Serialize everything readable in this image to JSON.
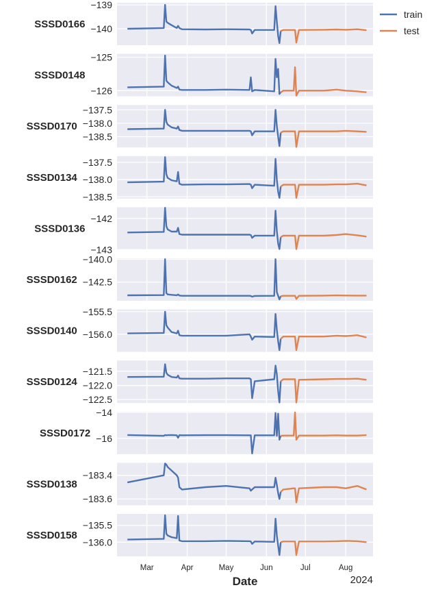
{
  "chart_data": {
    "type": "line",
    "year": "2024",
    "xlabel": "Date",
    "year_label": "2024",
    "xlim": [
      "02-07",
      "08-22"
    ],
    "x_ticks": [
      {
        "date": "03-01",
        "label": "Mar"
      },
      {
        "date": "04-01",
        "label": "Apr"
      },
      {
        "date": "05-01",
        "label": "May"
      },
      {
        "date": "06-01",
        "label": "Jun"
      },
      {
        "date": "07-01",
        "label": "Jul"
      },
      {
        "date": "08-01",
        "label": "Aug"
      }
    ],
    "legend": {
      "placement": "top-right outside",
      "entries": [
        {
          "name": "train",
          "color": "#4C72B0"
        },
        {
          "name": "test",
          "color": "#DD8452"
        }
      ]
    },
    "train_dates": [
      "02-15",
      "03-14",
      "03-15",
      "03-16",
      "03-17",
      "03-20",
      "03-24",
      "03-25",
      "03-26",
      "03-28",
      "04-15",
      "05-01",
      "05-19",
      "05-20",
      "05-21",
      "05-23",
      "06-07",
      "06-08",
      "06-09",
      "06-10",
      "06-11",
      "06-12"
    ],
    "test_dates": [
      "06-12",
      "06-14",
      "06-22",
      "06-23",
      "06-24",
      "06-26",
      "07-15",
      "07-25",
      "08-01",
      "08-10",
      "08-17"
    ],
    "panels": [
      {
        "name": "SSSD0166",
        "ylim": [
          -140.69,
          -138.91
        ],
        "yticks": [
          {
            "v": -139,
            "label": "−139"
          },
          {
            "v": -140,
            "label": "−140"
          }
        ],
        "train": [
          -140.0,
          -139.97,
          -139.0,
          -139.7,
          -139.75,
          -139.85,
          -139.97,
          -139.88,
          -139.97,
          -140.02,
          -140.03,
          -140.02,
          -140.03,
          -140.05,
          -140.2,
          -140.05,
          -140.05,
          -139.05,
          -139.7,
          -140.3,
          -140.6,
          -140.1
        ],
        "test": [
          -140.1,
          -140.05,
          -140.05,
          -140.05,
          -140.58,
          -140.05,
          -140.04,
          -140.03,
          -140.04,
          -140.02,
          -140.06
        ]
      },
      {
        "name": "SSSD0148",
        "ylim": [
          -126.17,
          -124.9
        ],
        "yticks": [
          {
            "v": -125,
            "label": "−125"
          },
          {
            "v": -126,
            "label": "−126"
          }
        ],
        "train": [
          -125.9,
          -125.88,
          -124.95,
          -125.7,
          -125.75,
          -125.85,
          -125.92,
          -125.88,
          -125.97,
          -125.98,
          -125.98,
          -125.97,
          -125.98,
          -125.6,
          -126.02,
          -125.98,
          -126.02,
          -125.05,
          -125.6,
          -125.35,
          -126.1,
          -126.05
        ],
        "test": [
          -126.05,
          -126.0,
          -126.0,
          -125.3,
          -126.15,
          -126.0,
          -126.0,
          -125.97,
          -126.0,
          -126.02,
          -126.05
        ]
      },
      {
        "name": "SSSD0170",
        "ylim": [
          -138.9,
          -137.32
        ],
        "yticks": [
          {
            "v": -137.5,
            "label": "−137.5"
          },
          {
            "v": -138.0,
            "label": "−138.0"
          },
          {
            "v": -138.5,
            "label": "−138.5"
          }
        ],
        "train": [
          -138.22,
          -138.2,
          -137.5,
          -137.95,
          -138.05,
          -138.15,
          -138.2,
          -138.12,
          -138.25,
          -138.28,
          -138.28,
          -138.28,
          -138.28,
          -138.3,
          -138.45,
          -138.3,
          -138.3,
          -137.5,
          -138.1,
          -138.5,
          -138.85,
          -138.35
        ],
        "test": [
          -138.35,
          -138.3,
          -138.3,
          -138.3,
          -138.88,
          -138.3,
          -138.3,
          -138.3,
          -138.28,
          -138.3,
          -138.32
        ]
      },
      {
        "name": "SSSD0134",
        "ylim": [
          -138.55,
          -137.32
        ],
        "yticks": [
          {
            "v": -137.5,
            "label": "−137.5"
          },
          {
            "v": -138.0,
            "label": "−138.0"
          },
          {
            "v": -138.5,
            "label": "−138.5"
          }
        ],
        "train": [
          -138.08,
          -138.06,
          -137.35,
          -137.85,
          -137.95,
          -138.02,
          -138.05,
          -137.78,
          -138.12,
          -138.15,
          -138.14,
          -138.14,
          -138.13,
          -138.15,
          -138.25,
          -138.15,
          -138.18,
          -137.4,
          -138.0,
          -138.35,
          -138.53,
          -138.2
        ],
        "test": [
          -138.2,
          -138.15,
          -138.15,
          -138.15,
          -138.53,
          -138.15,
          -138.15,
          -138.14,
          -138.14,
          -138.12,
          -138.17
        ]
      },
      {
        "name": "SSSD0136",
        "ylim": [
          -143.0,
          -141.64
        ],
        "yticks": [
          {
            "v": -142,
            "label": "−142"
          },
          {
            "v": -143,
            "label": "−143"
          }
        ],
        "train": [
          -142.45,
          -142.43,
          -141.66,
          -142.25,
          -142.35,
          -142.42,
          -142.42,
          -142.3,
          -142.5,
          -142.52,
          -142.52,
          -142.52,
          -142.52,
          -142.53,
          -142.62,
          -142.55,
          -142.55,
          -141.75,
          -142.4,
          -142.8,
          -142.98,
          -142.6
        ],
        "test": [
          -142.6,
          -142.55,
          -142.55,
          -142.55,
          -142.98,
          -142.55,
          -142.55,
          -142.53,
          -142.5,
          -142.54,
          -142.58
        ]
      },
      {
        "name": "SSSD0162",
        "ylim": [
          -144.55,
          -139.9
        ],
        "yticks": [
          {
            "v": -140.0,
            "label": "−140.0"
          },
          {
            "v": -142.5,
            "label": "−142.5"
          }
        ],
        "train": [
          -143.95,
          -143.93,
          -140.0,
          -143.7,
          -143.85,
          -143.9,
          -143.95,
          -143.85,
          -143.97,
          -144.0,
          -144.0,
          -144.0,
          -144.0,
          -144.02,
          -144.1,
          -144.02,
          -144.0,
          -140.0,
          -143.6,
          -144.0,
          -144.4,
          -144.05
        ],
        "test": [
          -144.05,
          -144.0,
          -144.0,
          -144.0,
          -144.35,
          -144.0,
          -143.98,
          -143.96,
          -143.97,
          -143.98,
          -143.98
        ]
      },
      {
        "name": "SSSD0140",
        "ylim": [
          -156.39,
          -155.45
        ],
        "yticks": [
          {
            "v": -155.5,
            "label": "−155.5"
          },
          {
            "v": -156.0,
            "label": "−156.0"
          }
        ],
        "train": [
          -155.98,
          -155.97,
          -155.5,
          -155.8,
          -155.85,
          -155.95,
          -155.98,
          -155.92,
          -156.02,
          -156.03,
          -156.03,
          -156.03,
          -156.0,
          -156.05,
          -156.12,
          -156.05,
          -156.06,
          -155.55,
          -155.9,
          -156.15,
          -156.35,
          -156.1
        ],
        "test": [
          -156.1,
          -156.05,
          -156.05,
          -156.05,
          -156.35,
          -156.05,
          -156.05,
          -156.03,
          -156.04,
          -156.02,
          -156.07
        ]
      },
      {
        "name": "SSSD0124",
        "ylim": [
          -122.62,
          -121.12
        ],
        "yticks": [
          {
            "v": -121.5,
            "label": "−121.5"
          },
          {
            "v": -122.0,
            "label": "−122.0"
          },
          {
            "v": -122.5,
            "label": "−122.5"
          }
        ],
        "train": [
          -121.7,
          -121.69,
          -121.25,
          -121.55,
          -121.62,
          -121.7,
          -121.72,
          -121.65,
          -121.75,
          -121.76,
          -121.76,
          -121.75,
          -121.75,
          -121.78,
          -122.45,
          -121.85,
          -121.78,
          -121.3,
          -121.6,
          -122.2,
          -122.6,
          -121.85
        ],
        "test": [
          -121.85,
          -121.78,
          -121.78,
          -121.78,
          -122.6,
          -121.8,
          -121.78,
          -121.77,
          -121.77,
          -121.76,
          -121.8
        ]
      },
      {
        "name": "SSSD0172",
        "ylim": [
          -17.2,
          -13.95
        ],
        "yticks": [
          {
            "v": -14,
            "label": "−14"
          },
          {
            "v": -16,
            "label": "−16"
          }
        ],
        "train": [
          -15.74,
          -15.8,
          -15.74,
          -15.76,
          -15.75,
          -15.74,
          -15.76,
          -15.95,
          -15.75,
          -15.76,
          -15.75,
          -15.75,
          -15.76,
          -15.76,
          -17.15,
          -15.76,
          -15.76,
          -14.05,
          -15.8,
          -14.1,
          -16.1,
          -15.8
        ],
        "test": [
          -15.8,
          -15.78,
          -15.78,
          -14.0,
          -16.1,
          -15.78,
          -15.78,
          -15.76,
          -15.78,
          -15.78,
          -15.75
        ]
      },
      {
        "name": "SSSD0138",
        "ylim": [
          -183.653,
          -183.294
        ],
        "yticks": [
          {
            "v": -183.4,
            "label": "−183.4"
          },
          {
            "v": -183.6,
            "label": "−183.6"
          }
        ],
        "train": [
          -183.46,
          -183.4,
          -183.3,
          -183.31,
          -183.33,
          -183.36,
          -183.4,
          -183.42,
          -183.5,
          -183.52,
          -183.5,
          -183.49,
          -183.51,
          -183.53,
          -183.52,
          -183.5,
          -183.5,
          -183.42,
          -183.48,
          -183.55,
          -183.6,
          -183.54
        ],
        "test": [
          -183.54,
          -183.52,
          -183.51,
          -183.51,
          -183.63,
          -183.51,
          -183.5,
          -183.5,
          -183.51,
          -183.49,
          -183.52
        ]
      },
      {
        "name": "SSSD0158",
        "ylim": [
          -136.42,
          -135.16
        ],
        "yticks": [
          {
            "v": -135.5,
            "label": "−135.5"
          },
          {
            "v": -136.0,
            "label": "−136.0"
          }
        ],
        "train": [
          -135.92,
          -135.9,
          -135.2,
          -135.75,
          -135.8,
          -135.85,
          -135.88,
          -135.22,
          -135.95,
          -135.97,
          -135.97,
          -135.96,
          -135.97,
          -135.98,
          -136.05,
          -135.98,
          -135.99,
          -135.3,
          -135.8,
          -136.1,
          -136.38,
          -136.0
        ],
        "test": [
          -136.0,
          -135.98,
          -135.98,
          -135.98,
          -136.38,
          -135.98,
          -135.98,
          -135.97,
          -135.96,
          -135.97,
          -136.0
        ]
      }
    ]
  }
}
